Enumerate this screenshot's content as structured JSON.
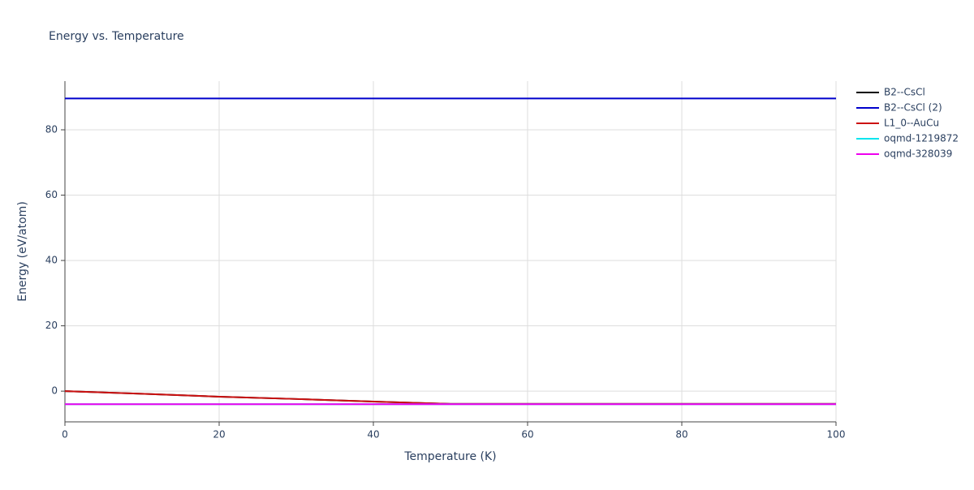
{
  "chart_data": {
    "type": "line",
    "title": "Energy vs. Temperature",
    "x_label": "Temperature (K)",
    "y_label": "Energy (eV/atom)",
    "x": [
      0,
      10,
      20,
      30,
      40,
      50,
      60,
      70,
      80,
      90,
      100
    ],
    "series": [
      {
        "name": "B2--CsCl",
        "color": "#000000",
        "values": [
          0,
          -0.8,
          -1.7,
          -2.4,
          -3.2,
          -3.9,
          -3.9,
          -3.9,
          -3.9,
          -3.9,
          -3.9
        ]
      },
      {
        "name": "B2--CsCl (2)",
        "color": "#0000cc",
        "values": [
          89.6,
          89.6,
          89.6,
          89.6,
          89.6,
          89.6,
          89.6,
          89.6,
          89.6,
          89.6,
          89.6
        ]
      },
      {
        "name": "L1_0--AuCu",
        "color": "#cc1111",
        "values": [
          0,
          -0.8,
          -1.7,
          -2.4,
          -3.2,
          -3.9,
          -3.9,
          -3.9,
          -3.9,
          -3.9,
          -3.9
        ]
      },
      {
        "name": "oqmd-1219872",
        "color": "#00e5ee",
        "values": [
          -4,
          -4,
          -4,
          -4,
          -4,
          -4,
          -4,
          -4,
          -4,
          -4,
          -4
        ]
      },
      {
        "name": "oqmd-328039",
        "color": "#ee00ee",
        "values": [
          -4,
          -4,
          -4,
          -4,
          -4,
          -4,
          -4,
          -4,
          -4,
          -4,
          -4
        ]
      }
    ],
    "xlim": [
      0,
      100
    ],
    "xticks": [
      0,
      20,
      40,
      60,
      80,
      100
    ],
    "ylim": [
      -9.4,
      94.9
    ],
    "yticks": [
      0,
      20,
      40,
      60,
      80
    ],
    "grid": true,
    "legend": "right"
  }
}
